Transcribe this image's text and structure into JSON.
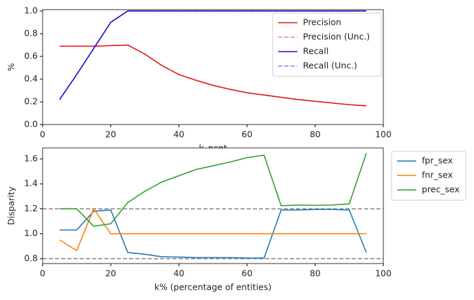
{
  "chart_data": [
    {
      "type": "line",
      "xlabel": "k_pcnt",
      "ylabel": "%",
      "x": [
        5,
        10,
        15,
        20,
        25,
        30,
        35,
        40,
        45,
        50,
        55,
        60,
        65,
        70,
        75,
        80,
        85,
        90,
        95
      ],
      "series": [
        {
          "name": "Precision (Unc.)",
          "color": "#f08080",
          "dashed": true,
          "values": [
            0.69,
            0.69,
            0.69,
            0.695,
            0.7,
            0.62,
            0.52,
            0.44,
            0.39,
            0.345,
            0.31,
            0.28,
            0.26,
            0.24,
            0.22,
            0.205,
            0.19,
            0.175,
            0.165
          ]
        },
        {
          "name": "Recall (Unc.)",
          "color": "#8080f0",
          "dashed": true,
          "values": [
            0.22,
            0.44,
            0.67,
            0.9,
            1.0,
            1.0,
            1.0,
            1.0,
            1.0,
            1.0,
            1.0,
            1.0,
            1.0,
            1.0,
            1.0,
            1.0,
            1.0,
            1.0,
            1.0
          ]
        },
        {
          "name": "Precision",
          "color": "#e41a1c",
          "dashed": false,
          "values": [
            0.69,
            0.69,
            0.69,
            0.695,
            0.7,
            0.62,
            0.52,
            0.44,
            0.39,
            0.345,
            0.31,
            0.28,
            0.26,
            0.24,
            0.22,
            0.205,
            0.19,
            0.175,
            0.165
          ]
        },
        {
          "name": "Recall",
          "color": "#1010d0",
          "dashed": false,
          "values": [
            0.22,
            0.44,
            0.67,
            0.9,
            1.0,
            1.0,
            1.0,
            1.0,
            1.0,
            1.0,
            1.0,
            1.0,
            1.0,
            1.0,
            1.0,
            1.0,
            1.0,
            1.0,
            1.0
          ]
        }
      ],
      "legend_order": [
        2,
        0,
        3,
        1
      ],
      "legend": "upper right",
      "xlim": [
        0,
        100
      ],
      "xticks": [
        0,
        20,
        40,
        60,
        80,
        100
      ],
      "ylim": [
        0,
        1.012
      ],
      "yticks": [
        {
          "value": 0,
          "label": "0.0"
        },
        0.2,
        0.4,
        0.6,
        0.8,
        {
          "value": 1,
          "label": "1.0"
        }
      ]
    },
    {
      "type": "line",
      "xlabel": "k% (percentage of entities)",
      "ylabel": "Disparity",
      "x": [
        5,
        10,
        15,
        20,
        25,
        30,
        35,
        40,
        45,
        50,
        55,
        60,
        65,
        70,
        75,
        80,
        85,
        90,
        95
      ],
      "series": [
        {
          "name": "fpr_sex",
          "color": "#1f77b4",
          "values": [
            1.03,
            1.03,
            1.18,
            1.19,
            0.85,
            0.835,
            0.815,
            0.813,
            0.808,
            0.808,
            0.808,
            0.805,
            0.805,
            1.19,
            1.19,
            1.195,
            1.195,
            1.19,
            0.85
          ]
        },
        {
          "name": "fnr_sex",
          "color": "#ff7f0e",
          "values": [
            0.95,
            0.865,
            1.2,
            1.0,
            1.0,
            1.0,
            1.0,
            1.0,
            1.0,
            1.0,
            1.0,
            1.0,
            1.0,
            1.0,
            1.0,
            1.0,
            1.0,
            1.0,
            1.0
          ]
        },
        {
          "name": "prec_sex",
          "color": "#2ca02c",
          "values": [
            1.2,
            1.2,
            1.06,
            1.08,
            1.25,
            1.34,
            1.415,
            1.465,
            1.515,
            1.545,
            1.575,
            1.61,
            1.63,
            1.225,
            1.23,
            1.228,
            1.23,
            1.24,
            1.645
          ]
        }
      ],
      "hlines": [
        0.8,
        1.2
      ],
      "hline_color": "#808080",
      "legend": "outside right",
      "xlim": [
        0,
        100
      ],
      "xticks": [
        0,
        20,
        40,
        60,
        80,
        100
      ],
      "ylim": [
        0.761,
        1.688
      ],
      "yticks": [
        0.8,
        {
          "value": 1,
          "label": "1.0"
        },
        1.2,
        1.4,
        1.6
      ]
    }
  ]
}
